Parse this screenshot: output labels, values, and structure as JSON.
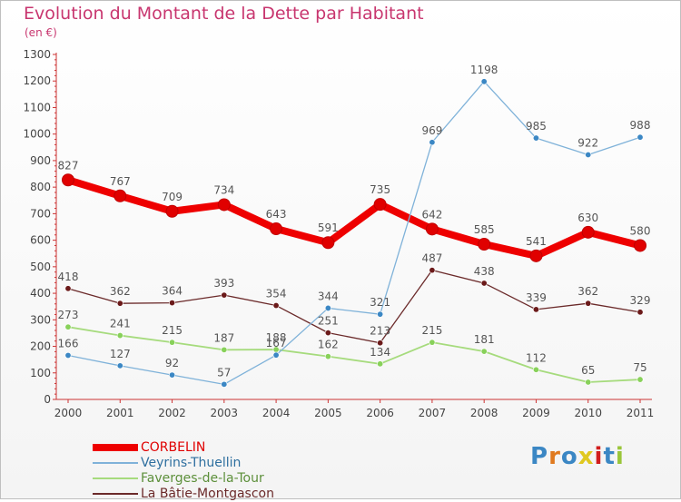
{
  "header": {
    "title": "Evolution du Montant de la Dette par Habitant",
    "subtitle": "(en €)"
  },
  "logo_text": "Proxiti",
  "chart_data": {
    "type": "line",
    "x": [
      "2000",
      "2001",
      "2002",
      "2003",
      "2004",
      "2005",
      "2006",
      "2007",
      "2008",
      "2009",
      "2010",
      "2011"
    ],
    "ylim": [
      0,
      1300
    ],
    "yticks": [
      0,
      100,
      200,
      300,
      400,
      500,
      600,
      700,
      800,
      900,
      1000,
      1100,
      1200,
      1300
    ],
    "grid": false,
    "legend_position": "bottom-left",
    "series": [
      {
        "name": "CORBELIN",
        "color": "#ee0000",
        "point_color": "#e00000",
        "width": 8,
        "marker_r": 6.5,
        "label_color": "#555555",
        "values": [
          827,
          767,
          709,
          734,
          643,
          591,
          735,
          642,
          585,
          541,
          630,
          580
        ]
      },
      {
        "name": "Veyrins-Thuellin",
        "color": "#7fb2d9",
        "point_color": "#3b87c4",
        "width": 1.3,
        "marker_r": 3.2,
        "label_color": "#555555",
        "values": [
          166,
          127,
          92,
          57,
          167,
          344,
          321,
          969,
          1198,
          985,
          922,
          988
        ]
      },
      {
        "name": "Faverges-de-la-Tour",
        "color": "#a6db7d",
        "point_color": "#88d15a",
        "width": 1.8,
        "marker_r": 3.2,
        "label_color": "#555555",
        "values": [
          273,
          241,
          215,
          187,
          188,
          162,
          134,
          215,
          181,
          112,
          65,
          75
        ]
      },
      {
        "name": "La Bâtie-Montgascon",
        "color": "#6b2a2a",
        "point_color": "#6b1a1a",
        "width": 1.3,
        "marker_r": 3.2,
        "label_color": "#555555",
        "values": [
          418,
          362,
          364,
          393,
          354,
          251,
          213,
          487,
          438,
          339,
          362,
          329
        ]
      }
    ]
  }
}
